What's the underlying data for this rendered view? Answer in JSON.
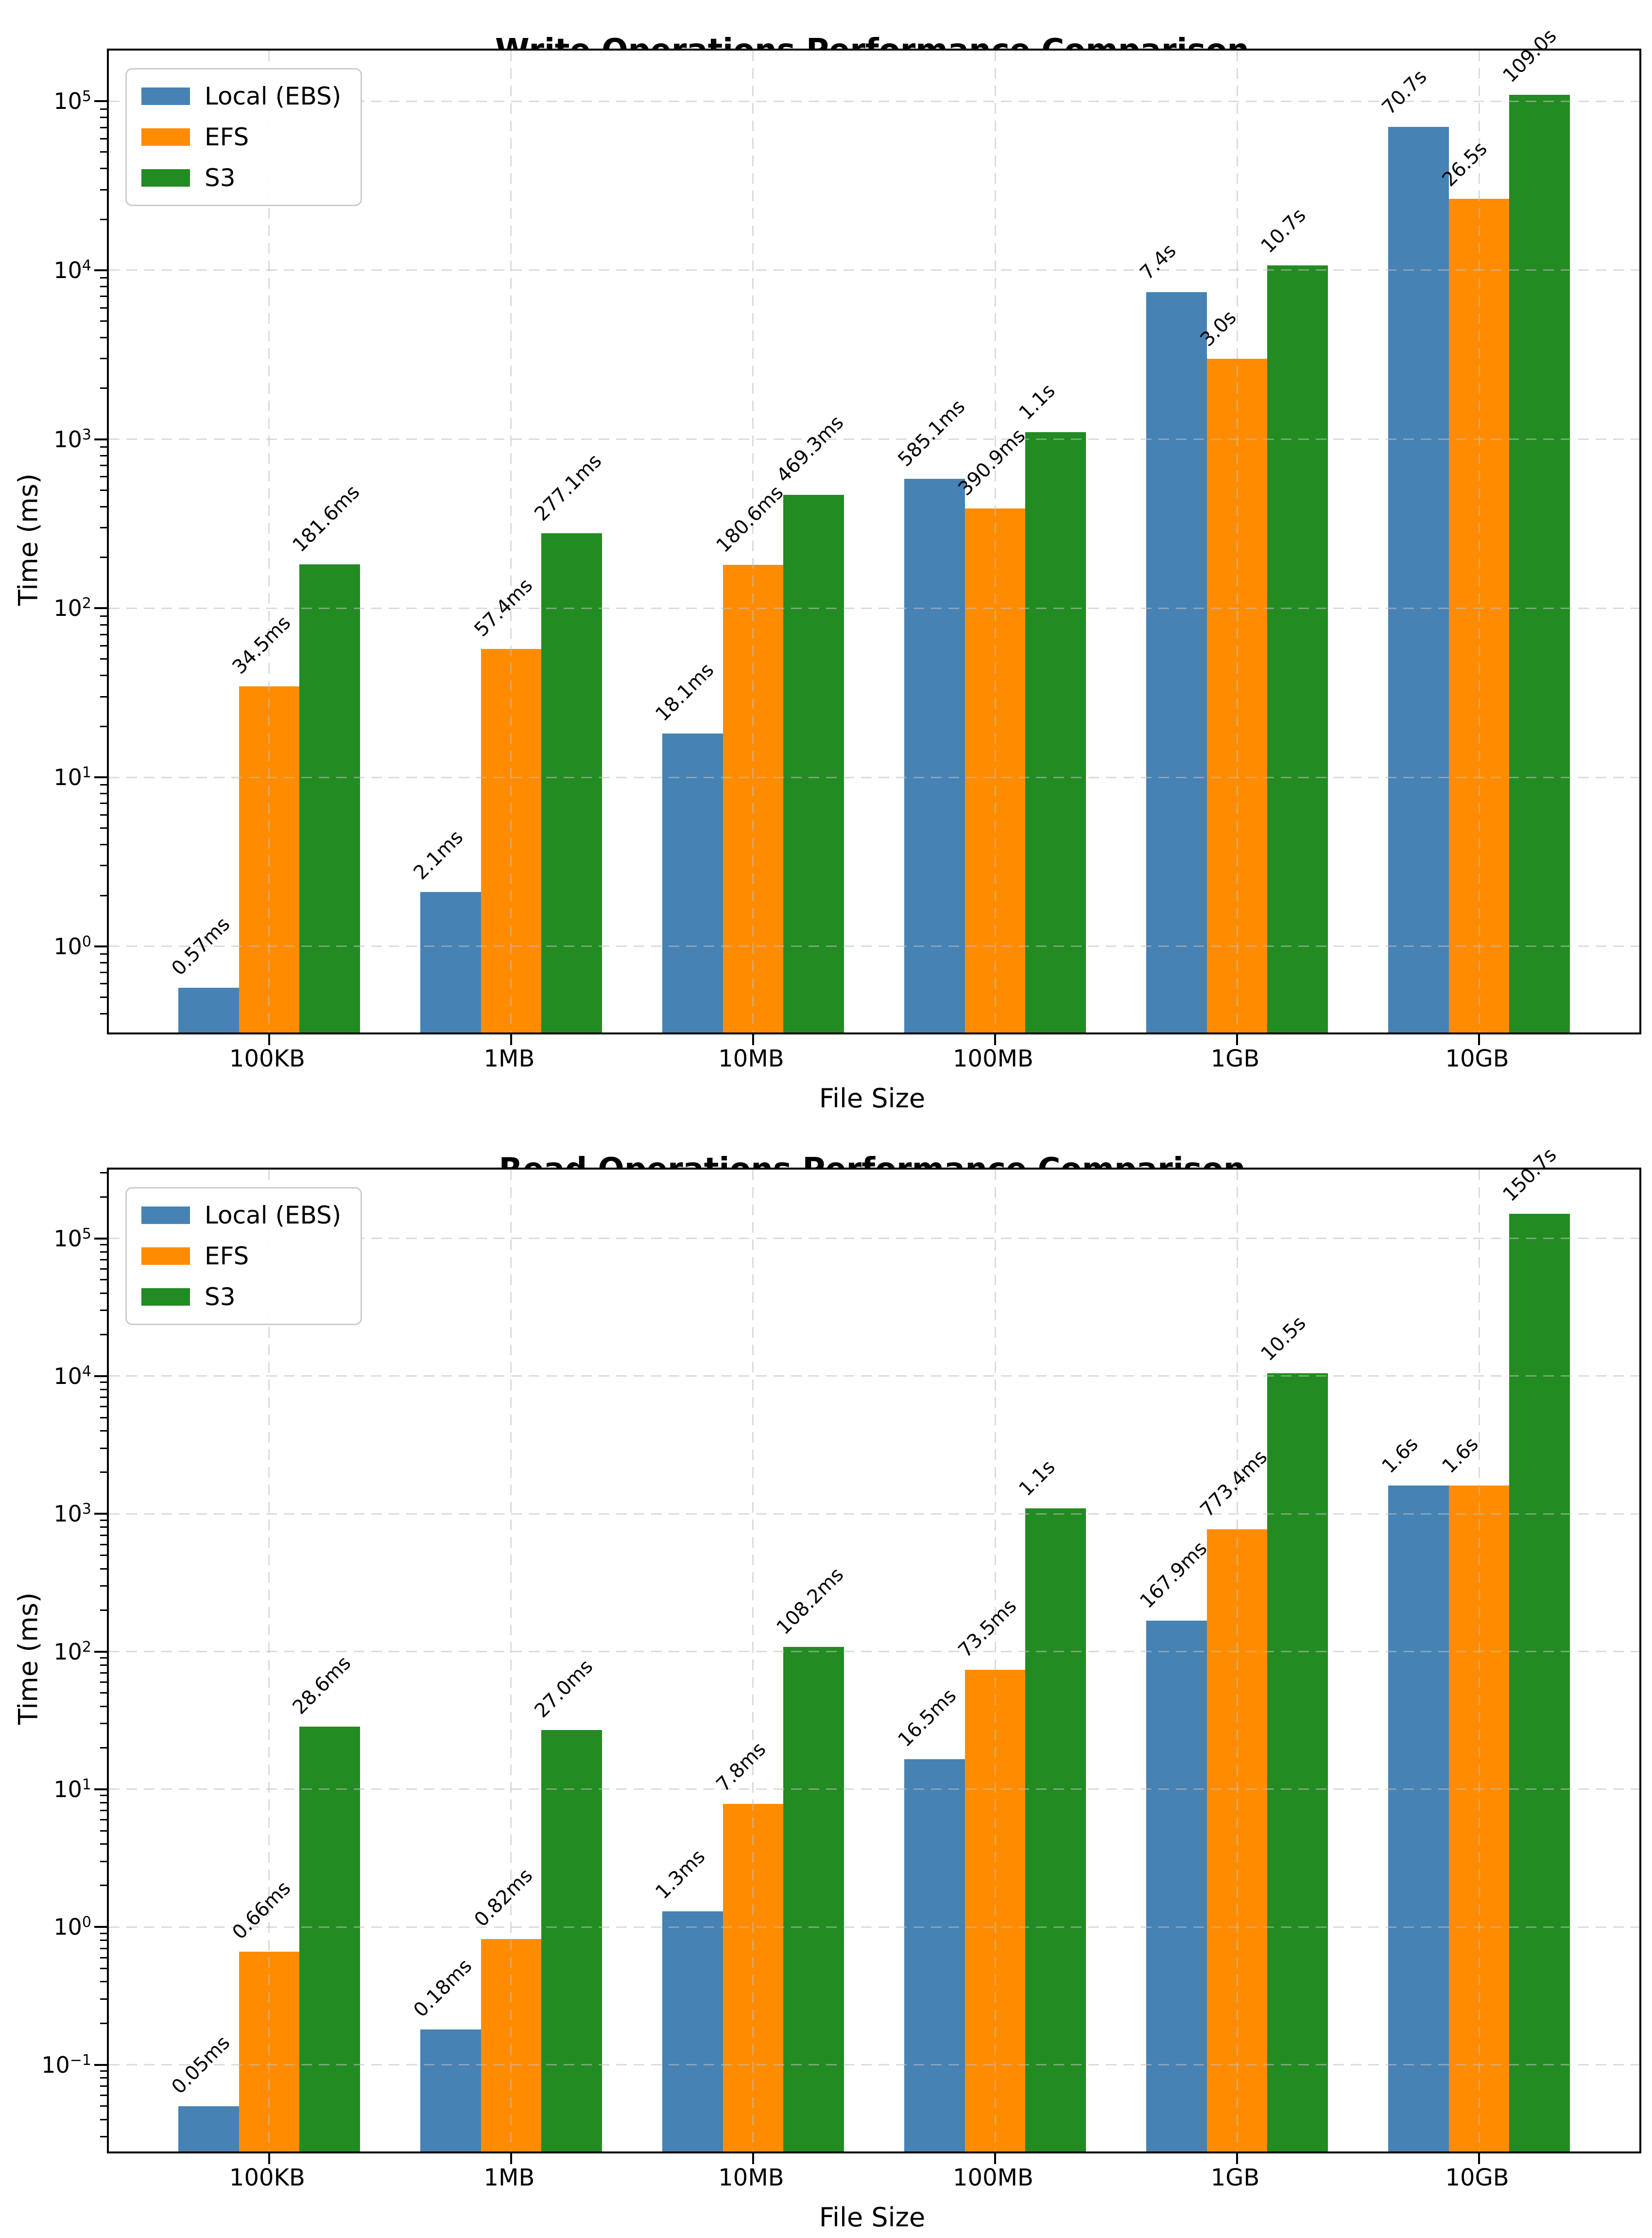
{
  "colors": {
    "local_ebs": "#4682B4",
    "efs": "#FF8C00",
    "s3": "#228B22",
    "grid": "#BEBEBE",
    "spine": "#000000",
    "legend_border": "#CCCCCC"
  },
  "chart_data": [
    {
      "type": "bar",
      "title": "Write Operations Performance Comparison",
      "xlabel": "File Size",
      "ylabel": "Time (ms)",
      "yscale": "log",
      "grid": true,
      "legend_position": "upper left",
      "categories": [
        "100KB",
        "1MB",
        "10MB",
        "100MB",
        "1GB",
        "10GB"
      ],
      "y_tick_exponents": [
        0,
        1,
        2,
        3,
        4,
        5
      ],
      "ylim_log10": [
        -0.51,
        5.3
      ],
      "series": [
        {
          "name": "Local (EBS)",
          "color": "#4682B4",
          "values_ms": [
            0.57,
            2.1,
            18.1,
            585.1,
            7400,
            70700
          ],
          "labels": [
            "0.57ms",
            "2.1ms",
            "18.1ms",
            "585.1ms",
            "7.4s",
            "70.7s"
          ]
        },
        {
          "name": "EFS",
          "color": "#FF8C00",
          "values_ms": [
            34.5,
            57.4,
            180.6,
            390.9,
            3000,
            26500
          ],
          "labels": [
            "34.5ms",
            "57.4ms",
            "180.6ms",
            "390.9ms",
            "3.0s",
            "26.5s"
          ]
        },
        {
          "name": "S3",
          "color": "#228B22",
          "values_ms": [
            181.6,
            277.1,
            469.3,
            1100,
            10700,
            109000
          ],
          "labels": [
            "181.6ms",
            "277.1ms",
            "469.3ms",
            "1.1s",
            "10.7s",
            "109.0s"
          ]
        }
      ]
    },
    {
      "type": "bar",
      "title": "Read Operations Performance Comparison",
      "xlabel": "File Size",
      "ylabel": "Time (ms)",
      "yscale": "log",
      "grid": true,
      "legend_position": "upper left",
      "categories": [
        "100KB",
        "1MB",
        "10MB",
        "100MB",
        "1GB",
        "10GB"
      ],
      "y_tick_exponents": [
        -1,
        0,
        1,
        2,
        3,
        4,
        5
      ],
      "ylim_log10": [
        -1.63,
        5.5
      ],
      "series": [
        {
          "name": "Local (EBS)",
          "color": "#4682B4",
          "values_ms": [
            0.05,
            0.18,
            1.3,
            16.5,
            167.9,
            1600
          ],
          "labels": [
            "0.05ms",
            "0.18ms",
            "1.3ms",
            "16.5ms",
            "167.9ms",
            "1.6s"
          ]
        },
        {
          "name": "EFS",
          "color": "#FF8C00",
          "values_ms": [
            0.66,
            0.82,
            7.8,
            73.5,
            773.4,
            1600
          ],
          "labels": [
            "0.66ms",
            "0.82ms",
            "7.8ms",
            "73.5ms",
            "773.4ms",
            "1.6s"
          ]
        },
        {
          "name": "S3",
          "color": "#228B22",
          "values_ms": [
            28.6,
            27.0,
            108.2,
            1100,
            10500,
            150700
          ],
          "labels": [
            "28.6ms",
            "27.0ms",
            "108.2ms",
            "1.1s",
            "10.5s",
            "150.7s"
          ]
        }
      ]
    }
  ]
}
